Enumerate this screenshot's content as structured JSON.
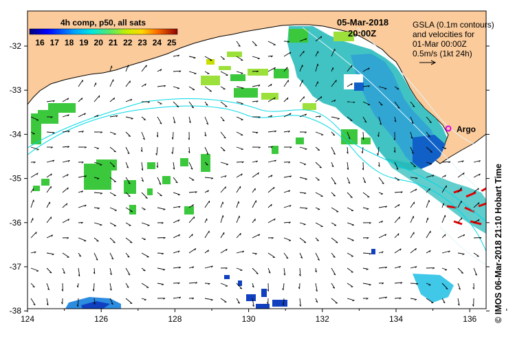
{
  "map": {
    "date_label": "05-Mar-2018",
    "time_label": "20:00Z",
    "colorbar": {
      "title": "4h comp, p50, all sats",
      "ticks": [
        "16",
        "17",
        "18",
        "19",
        "20",
        "21",
        "22",
        "23",
        "24",
        "25"
      ]
    },
    "legend_text": {
      "line1": "GSLA (0.1m contours)",
      "line2": "and velocities for",
      "line3": "01-Mar 00:00Z",
      "line4": "0.5m/s (1kt 24h)"
    },
    "argo_label": "Argo",
    "credit": "© IMOS 06-Mar-2018 21:10 Hobart Time",
    "x_ticks": [
      "124",
      "126",
      "128",
      "130",
      "132",
      "134",
      "136"
    ],
    "y_ticks": [
      "-32",
      "-33",
      "-34",
      "-35",
      "-36",
      "-37",
      "-38"
    ],
    "colors": {
      "land": "#FBCB9B",
      "contour": "#00D8E6",
      "argo": "#E000E0",
      "sst_green": "#3CC83C",
      "sst_cyan": "#20B8B8",
      "sst_blue": "#1060C8",
      "sst_red": "#E00000"
    }
  }
}
